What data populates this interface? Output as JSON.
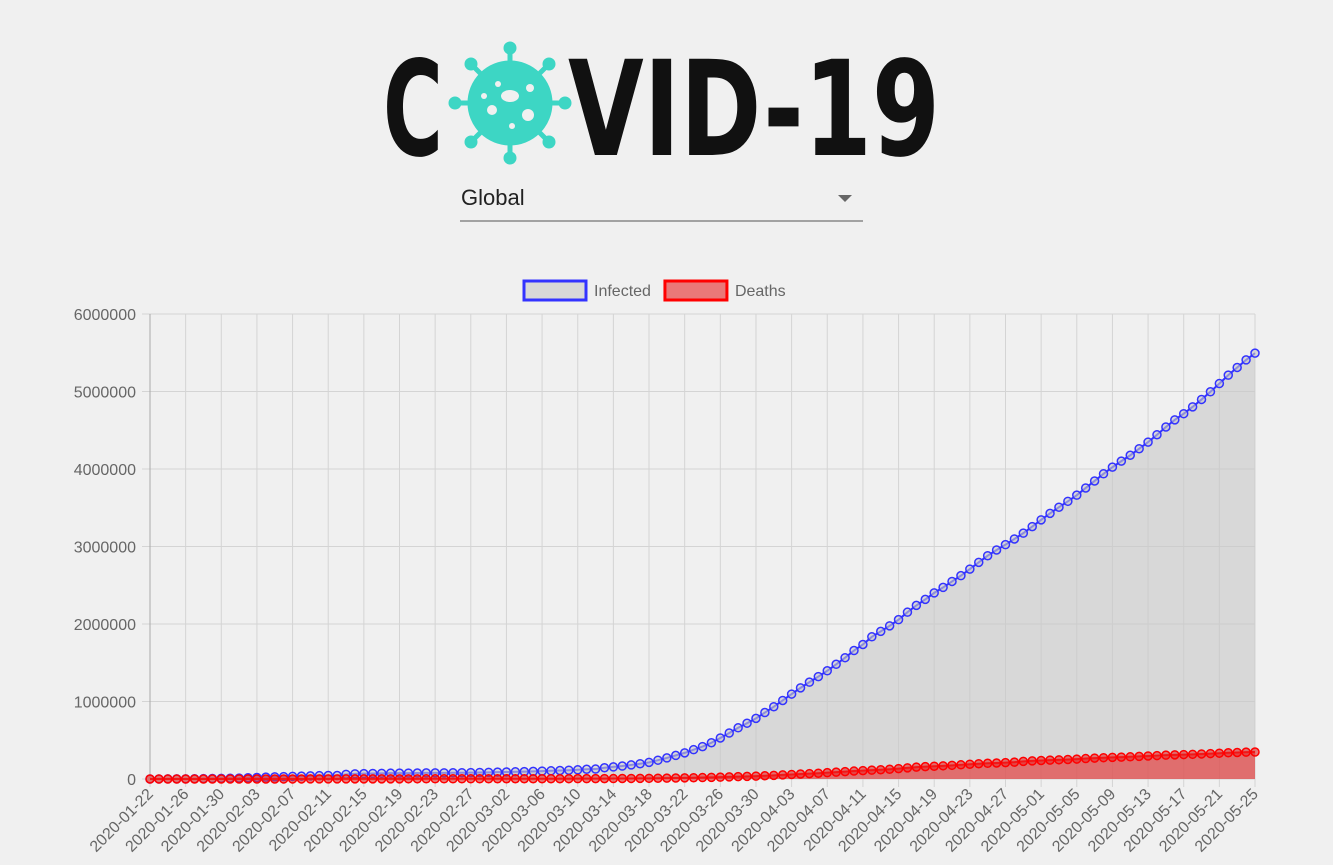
{
  "header": {
    "logo_left": "C",
    "logo_right": "VID-19"
  },
  "selector": {
    "value": "Global"
  },
  "chart_data": {
    "type": "line",
    "categories": [
      "2020-01-22",
      null,
      null,
      null,
      "2020-01-26",
      null,
      null,
      null,
      "2020-01-30",
      null,
      null,
      null,
      "2020-02-03",
      null,
      null,
      null,
      "2020-02-07",
      null,
      null,
      null,
      "2020-02-11",
      null,
      null,
      null,
      "2020-02-15",
      null,
      null,
      null,
      "2020-02-19",
      null,
      null,
      null,
      "2020-02-23",
      null,
      null,
      null,
      "2020-02-27",
      null,
      null,
      null,
      "2020-03-02",
      null,
      null,
      null,
      "2020-03-06",
      null,
      null,
      null,
      "2020-03-10",
      null,
      null,
      null,
      "2020-03-14",
      null,
      null,
      null,
      "2020-03-18",
      null,
      null,
      null,
      "2020-03-22",
      null,
      null,
      null,
      "2020-03-26",
      null,
      null,
      null,
      "2020-03-30",
      null,
      null,
      null,
      "2020-04-03",
      null,
      null,
      null,
      "2020-04-07",
      null,
      null,
      null,
      "2020-04-11",
      null,
      null,
      null,
      "2020-04-15",
      null,
      null,
      null,
      "2020-04-19",
      null,
      null,
      null,
      "2020-04-23",
      null,
      null,
      null,
      "2020-04-27",
      null,
      null,
      null,
      "2020-05-01",
      null,
      null,
      null,
      "2020-05-05",
      null,
      null,
      null,
      "2020-05-09",
      null,
      null,
      null,
      "2020-05-13",
      null,
      null,
      null,
      "2020-05-17",
      null,
      null,
      null,
      "2020-05-21",
      null,
      null,
      null,
      "2020-05-25"
    ],
    "series": [
      {
        "name": "Infected",
        "color": "#3333ff",
        "fill": "rgba(200,200,200,0.6)",
        "values": [
          555,
          654,
          941,
          1434,
          2118,
          2927,
          5578,
          6166,
          8234,
          9927,
          12038,
          16787,
          19887,
          23898,
          27643,
          30802,
          34395,
          37129,
          40159,
          42768,
          44811,
          45229,
          60381,
          66909,
          69052,
          71235,
          73270,
          75152,
          75652,
          76212,
          76841,
          78602,
          78982,
          79546,
          80399,
          81376,
          82736,
          84124,
          86013,
          88371,
          90309,
          92844,
          95124,
          97886,
          101800,
          105836,
          109835,
          113582,
          118582,
          125865,
          128343,
          145193,
          156097,
          167449,
          181546,
          197168,
          214915,
          242713,
          272167,
          304528,
          337020,
          378287,
          418041,
          467653,
          529591,
          593291,
          660693,
          720140,
          782389,
          857487,
          932605,
          1013466,
          1095917,
          1176060,
          1249754,
          1321481,
          1396476,
          1480202,
          1565278,
          1657526,
          1735650,
          1834721,
          1904838,
          1976191,
          2056054,
          2152437,
          2240190,
          2317758,
          2401378,
          2472259,
          2549123,
          2624004,
          2708403,
          2795729,
          2881140,
          2955033,
          3023722,
          3097229,
          3172287,
          3256846,
          3343777,
          3427584,
          3506729,
          3583055,
          3662691,
          3755341,
          3845718,
          3938064,
          4024009,
          4101699,
          4177502,
          4261747,
          4347018,
          4442163,
          4542347,
          4634068,
          4713620,
          4801943,
          4897492,
          4996472,
          5102424,
          5210817,
          5310362,
          5407613,
          5495061
        ]
      },
      {
        "name": "Deaths",
        "color": "#ff0000",
        "fill": "rgba(230,40,40,0.6)",
        "values": [
          17,
          18,
          26,
          42,
          56,
          82,
          131,
          133,
          171,
          213,
          259,
          362,
          426,
          492,
          564,
          634,
          719,
          806,
          906,
          1013,
          1113,
          1118,
          1371,
          1523,
          1666,
          1770,
          1868,
          2007,
          2122,
          2247,
          2251,
          2458,
          2469,
          2629,
          2708,
          2770,
          2814,
          2872,
          2941,
          2996,
          3085,
          3160,
          3254,
          3348,
          3460,
          3558,
          3802,
          3988,
          4262,
          4615,
          4720,
          5404,
          5819,
          6440,
          7126,
          7905,
          8733,
          9867,
          11299,
          12973,
          14623,
          16497,
          18615,
          21181,
          23970,
          27198,
          30652,
          33925,
          37582,
          42107,
          46809,
          52983,
          58787,
          64606,
          69374,
          74565,
          81865,
          88338,
          95455,
          102525,
          108502,
          114090,
          119482,
          125984,
          134177,
          143800,
          153822,
          159510,
          165069,
          169985,
          176583,
          183066,
          190858,
          197159,
          202846,
          206544,
          211167,
          217153,
          227638,
          233388,
          238650,
          243808,
          247470,
          251537,
          257239,
          263855,
          269567,
          274898,
          279311,
          282709,
          286330,
          291942,
          297197,
          302418,
          307666,
          311781,
          315185,
          318481,
          323285,
          328115,
          332924,
          338160,
          342097,
          346232,
          347836
        ]
      }
    ],
    "ylim": [
      0,
      6000000
    ],
    "yticks": [
      0,
      1000000,
      2000000,
      3000000,
      4000000,
      5000000,
      6000000
    ],
    "grid": true,
    "legend": "top"
  }
}
